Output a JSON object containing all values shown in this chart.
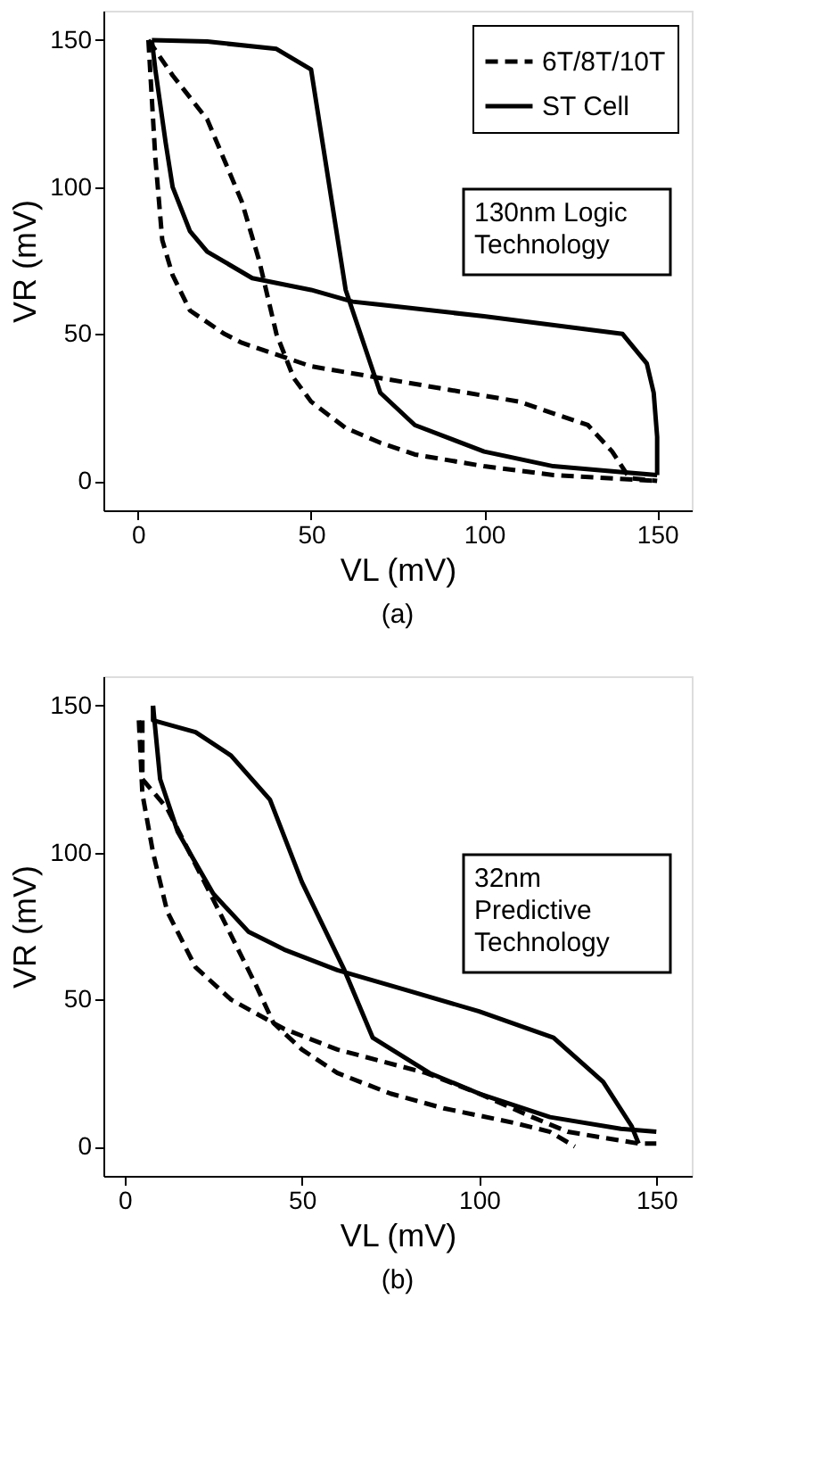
{
  "chart_data": [
    {
      "type": "line",
      "title": "(a)",
      "xlabel": "VL (mV)",
      "ylabel": "VR (mV)",
      "xlim": [
        -10,
        160
      ],
      "ylim": [
        -10,
        160
      ],
      "xticks": [
        0,
        50,
        100,
        150
      ],
      "yticks": [
        0,
        50,
        100,
        150
      ],
      "grid": false,
      "legend": "top right",
      "annotations": [
        "130nm Logic\nTechnology"
      ],
      "series": [
        {
          "name": "6T/8T/10T",
          "color": "#000000",
          "line_style": "dashed",
          "x": [
            3,
            10,
            20,
            30,
            35,
            40,
            45,
            50,
            60,
            70,
            80,
            100,
            120,
            150
          ],
          "values": [
            150,
            138,
            123,
            95,
            75,
            50,
            35,
            27,
            18,
            13,
            9,
            5,
            2,
            0
          ]
        },
        {
          "color": "#000000",
          "line_style": "dashed",
          "x": [
            3,
            4,
            5,
            7,
            10,
            15,
            25,
            30,
            40,
            50,
            70,
            90,
            110,
            130,
            137,
            142,
            150
          ],
          "values": [
            150,
            130,
            110,
            82,
            70,
            58,
            50,
            47,
            43,
            39,
            35,
            31,
            27,
            19,
            10,
            1,
            0
          ]
        },
        {
          "name": "ST Cell",
          "color": "#000000",
          "line_style": "solid",
          "x": [
            4,
            20,
            40,
            50,
            60,
            70,
            80,
            100,
            120,
            140,
            150
          ],
          "values": [
            150,
            149.5,
            147,
            140,
            65,
            30,
            19,
            10,
            5,
            3,
            2
          ]
        },
        {
          "color": "#000000",
          "line_style": "solid",
          "x": [
            4,
            5,
            8,
            10,
            15,
            20,
            33,
            50,
            62,
            70,
            100,
            140,
            147,
            149,
            150,
            150
          ],
          "values": [
            150,
            140,
            115,
            100,
            85,
            78,
            69,
            65,
            61,
            60,
            56,
            50,
            40,
            30,
            15,
            2
          ]
        }
      ]
    },
    {
      "type": "line",
      "title": "(b)",
      "xlabel": "VL (mV)",
      "ylabel": "VR (mV)",
      "xlim": [
        -6,
        160
      ],
      "ylim": [
        -10,
        160
      ],
      "xticks": [
        0,
        50,
        100,
        150
      ],
      "yticks": [
        0,
        50,
        100,
        150
      ],
      "grid": false,
      "legend": "top right",
      "annotations": [
        "32nm\nPredictive\nTechnology"
      ],
      "series": [
        {
          "name": "6T/8T/10T",
          "color": "#000000",
          "line_style": "dashed",
          "x": [
            5,
            5,
            12,
            25,
            37,
            42,
            50,
            60,
            75,
            90,
            110,
            120,
            127
          ],
          "values": [
            145,
            125,
            115,
            84,
            55,
            42,
            33,
            25,
            18,
            13,
            8,
            5,
            0
          ]
        },
        {
          "color": "#000000",
          "line_style": "dashed",
          "x": [
            4,
            5,
            8,
            12,
            20,
            30,
            45,
            60,
            85,
            100,
            115,
            125,
            145,
            150
          ],
          "values": [
            145,
            120,
            100,
            80,
            61,
            50,
            40,
            33,
            25,
            18,
            10,
            5,
            1,
            1
          ]
        },
        {
          "name": "ST Cell",
          "color": "#000000",
          "line_style": "solid",
          "x": [
            8,
            8,
            20,
            30,
            41,
            50,
            62,
            70,
            86,
            100,
            120,
            140,
            150
          ],
          "values": [
            150,
            145,
            141,
            133,
            118,
            90,
            60,
            37,
            25,
            18,
            10,
            6,
            5
          ]
        },
        {
          "color": "#000000",
          "line_style": "solid",
          "x": [
            8,
            10,
            15,
            25,
            35,
            45,
            60,
            80,
            100,
            121,
            135,
            143,
            145
          ],
          "values": [
            150,
            125,
            107,
            86,
            73,
            67,
            60,
            53,
            46,
            37,
            22,
            7,
            1
          ]
        }
      ]
    }
  ]
}
